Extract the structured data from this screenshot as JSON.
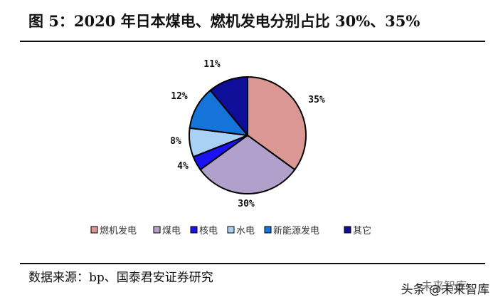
{
  "title": "图 5：2020 年日本煤电、燃机发电分别占比 30%、35%",
  "source": "数据来源：bp、国泰君安证券研究",
  "watermark": {
    "prefix": "头条",
    "handle": "@未来智库",
    "logo_text": "未来智库"
  },
  "chart_data": {
    "type": "pie",
    "categories": [
      "燃机发电",
      "煤电",
      "核电",
      "水电",
      "新能源发电",
      "其它"
    ],
    "values": [
      35,
      30,
      4,
      8,
      12,
      11
    ],
    "labels": [
      "35%",
      "30%",
      "4%",
      "8%",
      "12%",
      "11%"
    ],
    "colors": [
      "#DA9794",
      "#B1A0CB",
      "#1A12F0",
      "#A8D1F5",
      "#1574D9",
      "#0E0E98"
    ],
    "legend": "bottom",
    "title": ""
  }
}
